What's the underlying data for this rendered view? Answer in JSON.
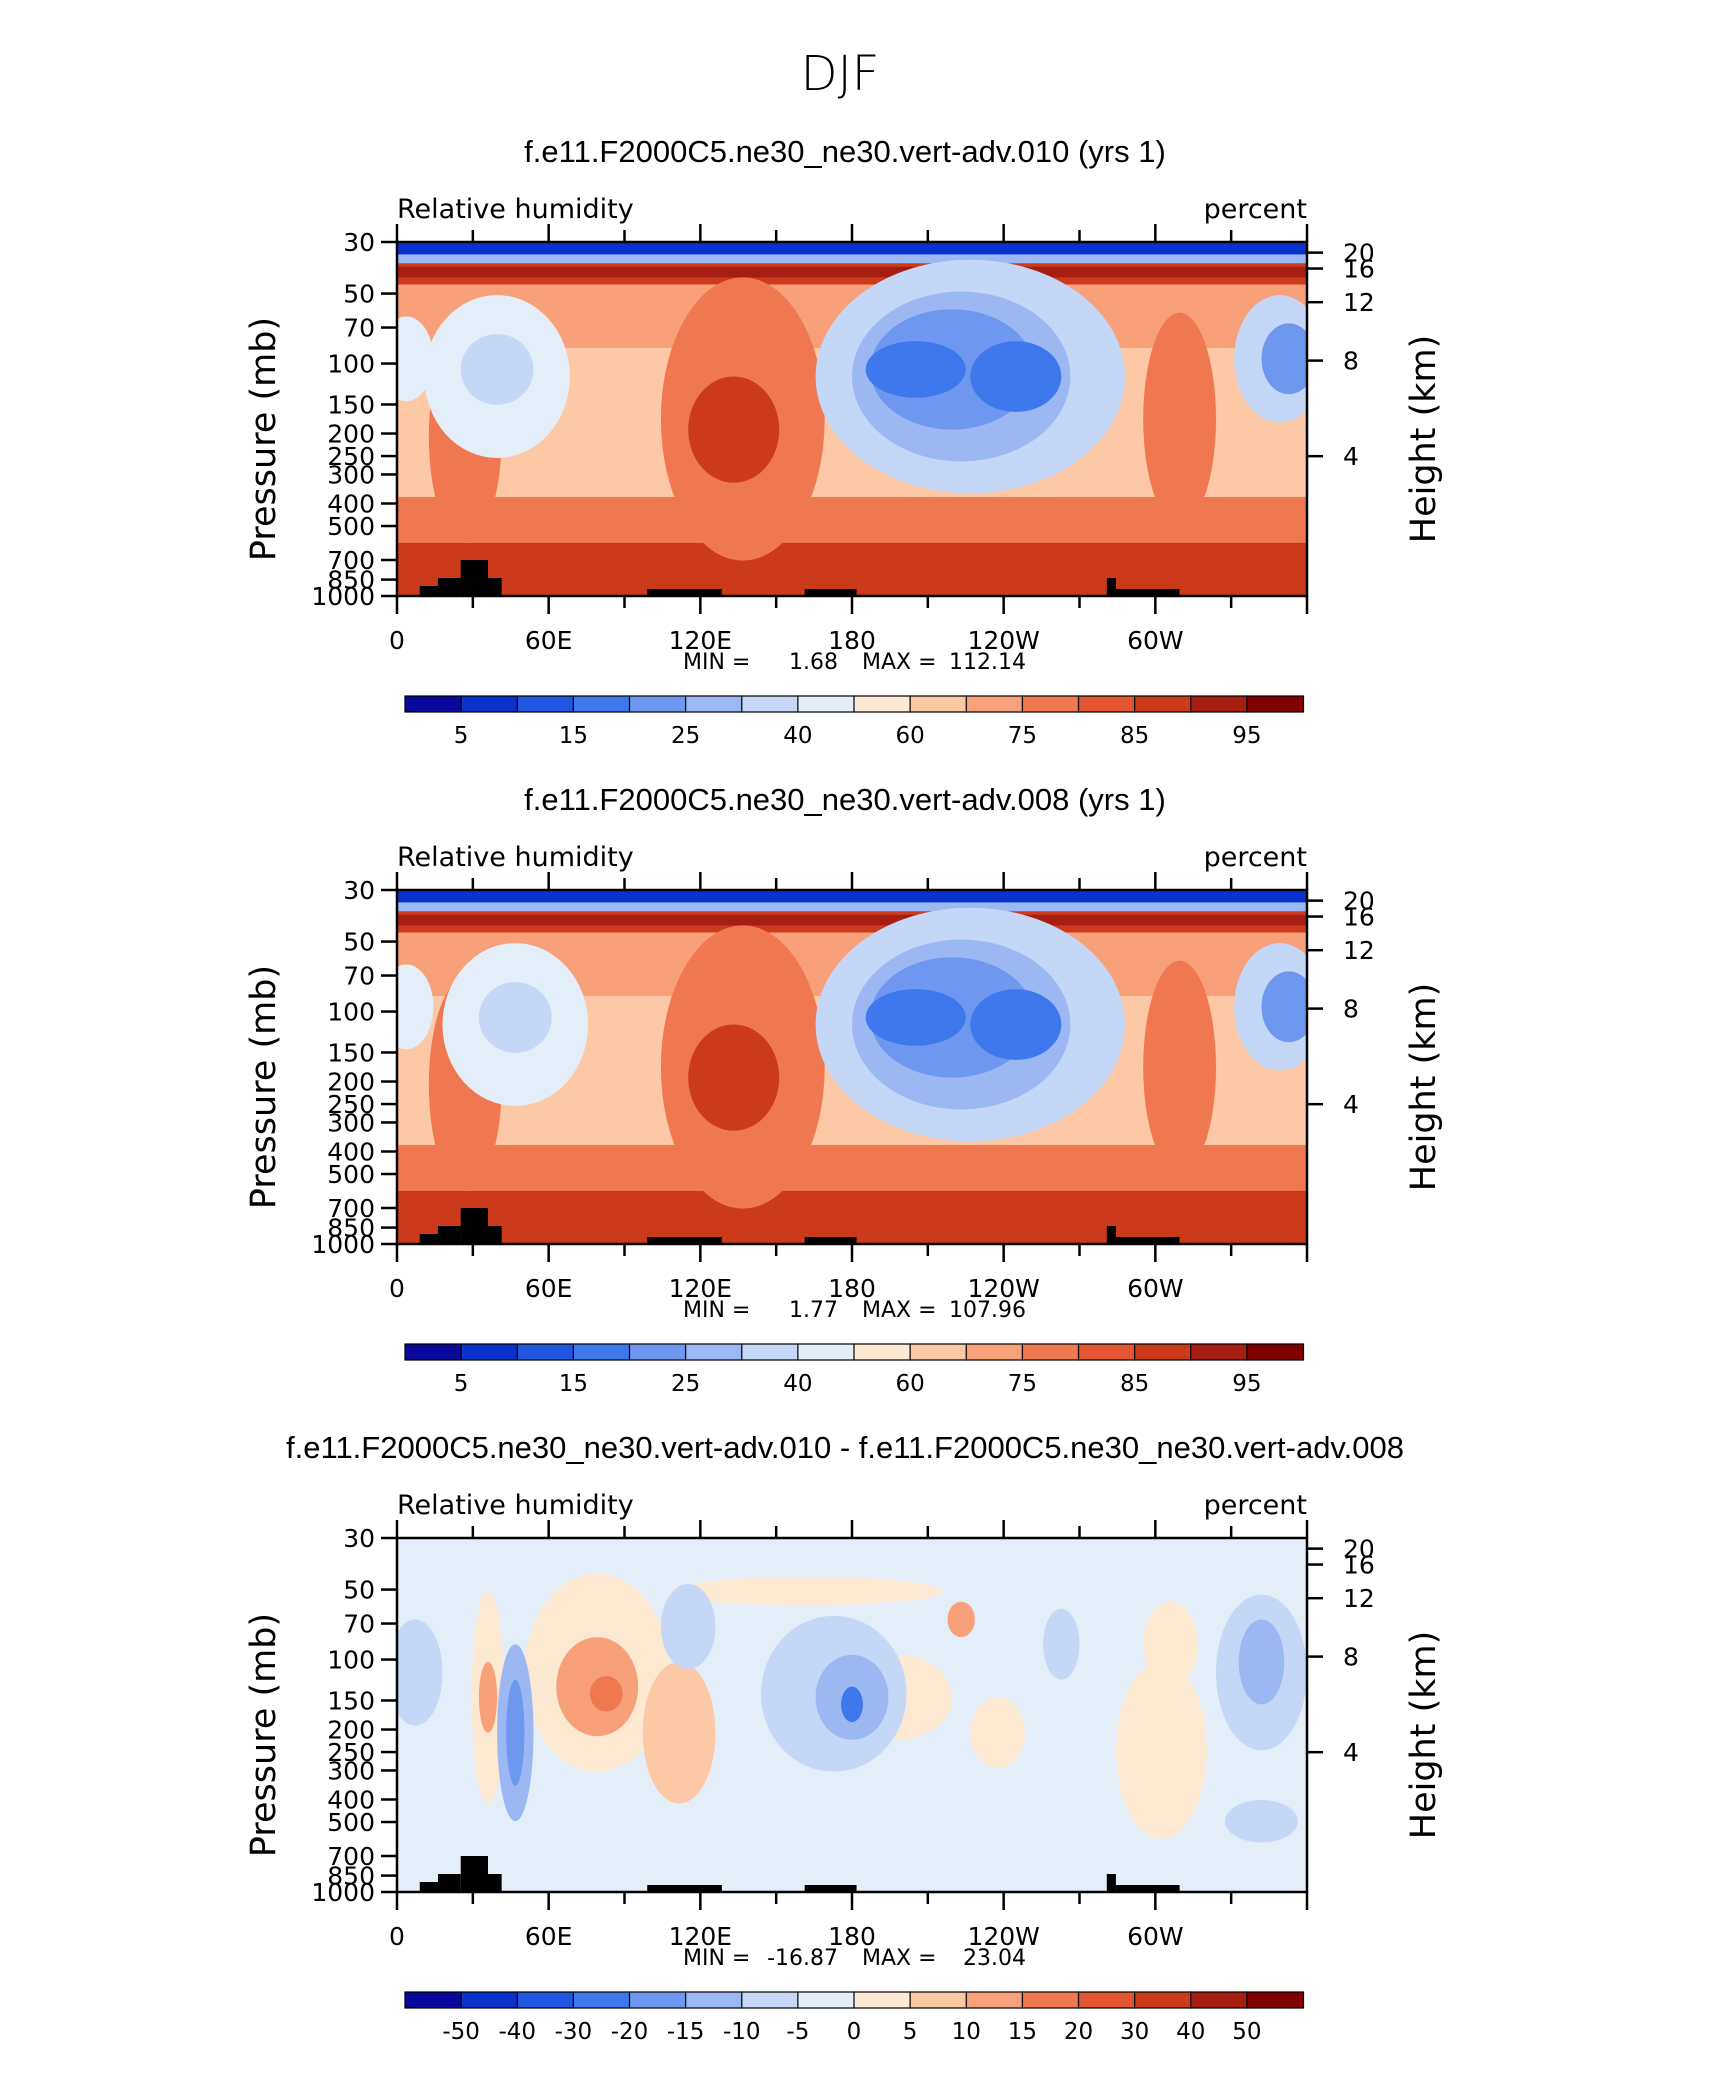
{
  "figure": {
    "title": "DJF"
  },
  "chart_data": [
    {
      "type": "heatmap",
      "panel_title": "f.e11.F2000C5.ne30_ne30.vert-adv.010 (yrs 1)",
      "left_label": "Relative humidity",
      "right_label": "percent",
      "ylabel": "Pressure (mb)",
      "ylabel_right": "Height (km)",
      "x_ticks": [
        "0",
        "60E",
        "120E",
        "180",
        "120W",
        "60W"
      ],
      "y_ticks": [
        "30",
        "50",
        "70",
        "100",
        "150",
        "200",
        "250",
        "300",
        "400",
        "500",
        "700",
        "850",
        "1000"
      ],
      "y_ticks_right": [
        "20",
        "16",
        "12",
        "8",
        "4"
      ],
      "min_label": "MIN =",
      "min_value": "1.68",
      "max_label": "MAX =",
      "max_value": "112.14",
      "colorbar_labels": [
        "5",
        "15",
        "25",
        "40",
        "60",
        "75",
        "85",
        "95"
      ],
      "colorbar_colors": [
        "#08089a",
        "#0a32cc",
        "#2056e0",
        "#3f78ec",
        "#6e98f0",
        "#9bb8f2",
        "#c4d7f6",
        "#e4eef8",
        "#fde8d2",
        "#fcc8a6",
        "#f8a07a",
        "#f07850",
        "#e45532",
        "#cc3a1c",
        "#a61e12",
        "#800000"
      ],
      "features": [
        {
          "type": "blob",
          "x": 230,
          "y": 450,
          "rx": 70,
          "ry": 70,
          "v": 17
        },
        {
          "type": "blob",
          "x": 245,
          "y": 440,
          "rx": 35,
          "ry": 35,
          "v": 10
        },
        {
          "type": "blob",
          "x": 205,
          "y": 390,
          "rx": 45,
          "ry": 60,
          "v": 23
        },
        {
          "type": "blob",
          "x": 200,
          "y": 350,
          "rx": 40,
          "ry": 55,
          "v": 12
        },
        {
          "type": "blob",
          "x": 110,
          "y": 320,
          "rx": 60,
          "ry": 40,
          "v": 22
        },
        {
          "type": "blob",
          "x": 10,
          "y": 380,
          "rx": 30,
          "ry": 70,
          "v": 18
        },
        {
          "type": "blob",
          "x": 115,
          "y": 300,
          "rx": 25,
          "ry": 40,
          "v": 18
        },
        {
          "type": "blob",
          "x": 222,
          "y": 420,
          "rx": 20,
          "ry": 20,
          "v": 9
        },
        {
          "type": "blob",
          "x": 60,
          "y": 330,
          "rx": 10,
          "ry": 14,
          "v": 9
        }
      ]
    },
    {
      "type": "heatmap",
      "panel_title": "f.e11.F2000C5.ne30_ne30.vert-adv.008 (yrs 1)",
      "left_label": "Relative humidity",
      "right_label": "percent",
      "ylabel": "Pressure (mb)",
      "ylabel_right": "Height (km)",
      "x_ticks": [
        "0",
        "60E",
        "120E",
        "180",
        "120W",
        "60W"
      ],
      "y_ticks": [
        "30",
        "50",
        "70",
        "100",
        "150",
        "200",
        "250",
        "300",
        "400",
        "500",
        "700",
        "850",
        "1000"
      ],
      "y_ticks_right": [
        "20",
        "16",
        "12",
        "8",
        "4"
      ],
      "min_label": "MIN =",
      "min_value": "1.77",
      "max_label": "MAX =",
      "max_value": "107.96",
      "colorbar_labels": [
        "5",
        "15",
        "25",
        "40",
        "60",
        "75",
        "85",
        "95"
      ],
      "colorbar_colors": [
        "#08089a",
        "#0a32cc",
        "#2056e0",
        "#3f78ec",
        "#6e98f0",
        "#9bb8f2",
        "#c4d7f6",
        "#e4eef8",
        "#fde8d2",
        "#fcc8a6",
        "#f8a07a",
        "#f07850",
        "#e45532",
        "#cc3a1c",
        "#a61e12",
        "#800000"
      ],
      "features": [
        {
          "type": "blob",
          "x": 225,
          "y": 450,
          "rx": 70,
          "ry": 75,
          "v": 17
        },
        {
          "type": "blob",
          "x": 240,
          "y": 440,
          "rx": 35,
          "ry": 35,
          "v": 10
        },
        {
          "type": "blob",
          "x": 200,
          "y": 390,
          "rx": 45,
          "ry": 60,
          "v": 23
        },
        {
          "type": "blob",
          "x": 205,
          "y": 355,
          "rx": 35,
          "ry": 45,
          "v": 12
        },
        {
          "type": "blob",
          "x": 105,
          "y": 330,
          "rx": 60,
          "ry": 40,
          "v": 21
        },
        {
          "type": "blob",
          "x": 10,
          "y": 360,
          "rx": 25,
          "ry": 60,
          "v": 19
        },
        {
          "type": "blob",
          "x": 115,
          "y": 310,
          "rx": 25,
          "ry": 45,
          "v": 19
        },
        {
          "type": "blob",
          "x": 62,
          "y": 350,
          "rx": 12,
          "ry": 14,
          "v": 9
        }
      ]
    },
    {
      "type": "heatmap",
      "panel_title": "f.e11.F2000C5.ne30_ne30.vert-adv.010 - f.e11.F2000C5.ne30_ne30.vert-adv.008",
      "left_label": "Relative humidity",
      "right_label": "percent",
      "ylabel": "Pressure (mb)",
      "ylabel_right": "Height (km)",
      "x_ticks": [
        "0",
        "60E",
        "120E",
        "180",
        "120W",
        "60W"
      ],
      "y_ticks": [
        "30",
        "50",
        "70",
        "100",
        "150",
        "200",
        "250",
        "300",
        "400",
        "500",
        "700",
        "850",
        "1000"
      ],
      "y_ticks_right": [
        "20",
        "16",
        "12",
        "8",
        "4"
      ],
      "min_label": "MIN =",
      "min_value": "-16.87",
      "max_label": "MAX =",
      "max_value": "23.04",
      "colorbar_labels": [
        "-50",
        "-40",
        "-30",
        "-20",
        "-15",
        "-10",
        "-5",
        "0",
        "5",
        "10",
        "15",
        "20",
        "30",
        "40",
        "50"
      ],
      "colorbar_colors": [
        "#08089a",
        "#0a32cc",
        "#2056e0",
        "#3f78ec",
        "#6e98f0",
        "#9bb8f2",
        "#c4d7f6",
        "#e4eef8",
        "#fde8d2",
        "#fcc8a6",
        "#f8a07a",
        "#f07850",
        "#e45532",
        "#cc3a1c",
        "#a61e12",
        "#800000"
      ],
      "features": [
        {
          "type": "blob",
          "x": 60,
          "y": 350,
          "rx": 20,
          "ry": 50,
          "v": 0
        },
        {
          "type": "blob",
          "x": 40,
          "y": 400,
          "rx": 14,
          "ry": 60,
          "v": 3
        },
        {
          "type": "blob",
          "x": 75,
          "y": 320,
          "rx": 22,
          "ry": 50,
          "v": 8
        },
        {
          "type": "blob",
          "x": 180,
          "y": 380,
          "rx": 35,
          "ry": 60,
          "v": 3
        },
        {
          "type": "blob",
          "x": 210,
          "y": 370,
          "rx": 15,
          "ry": 25,
          "v": 2
        },
        {
          "type": "blob",
          "x": 335,
          "y": 330,
          "rx": 20,
          "ry": 45,
          "v": 2
        },
        {
          "type": "blob",
          "x": 15,
          "y": 300,
          "rx": 18,
          "ry": 40,
          "v": 4
        },
        {
          "type": "blob",
          "x": 235,
          "y": 320,
          "rx": 10,
          "ry": 15,
          "v": 9
        },
        {
          "type": "blob",
          "x": 175,
          "y": 350,
          "rx": 12,
          "ry": 15,
          "v": 5
        }
      ]
    }
  ]
}
